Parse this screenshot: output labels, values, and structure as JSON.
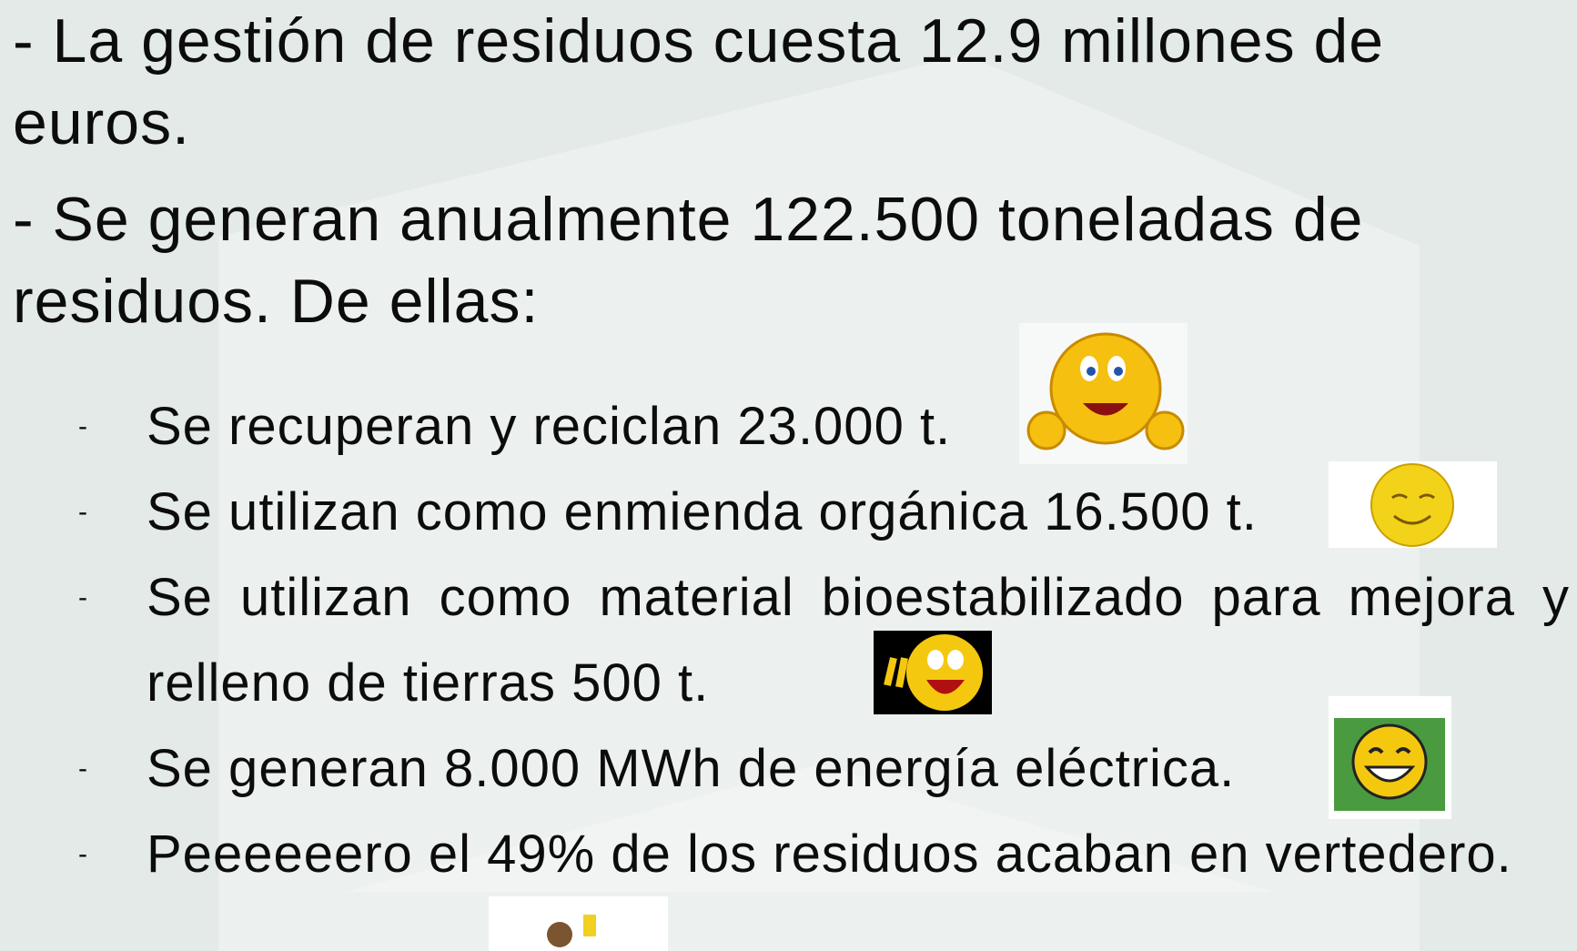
{
  "intro": [
    "- La gestión de residuos cuesta 12.9 millones de euros.",
    "- Se generan anualmente 122.500 toneladas de residuos. De ellas:"
  ],
  "bullet": "-",
  "items": [
    "Se recuperan y reciclan 23.000 t.",
    "Se utilizan como enmienda orgánica 16.500 t.",
    "Se utilizan como material bioestabilizado para mejora y relleno de tierras 500 t.",
    "Se generan 8.000 MWh de energía eléctrica.",
    "Peeeeeero el 49% de los residuos acaban en vertedero."
  ]
}
